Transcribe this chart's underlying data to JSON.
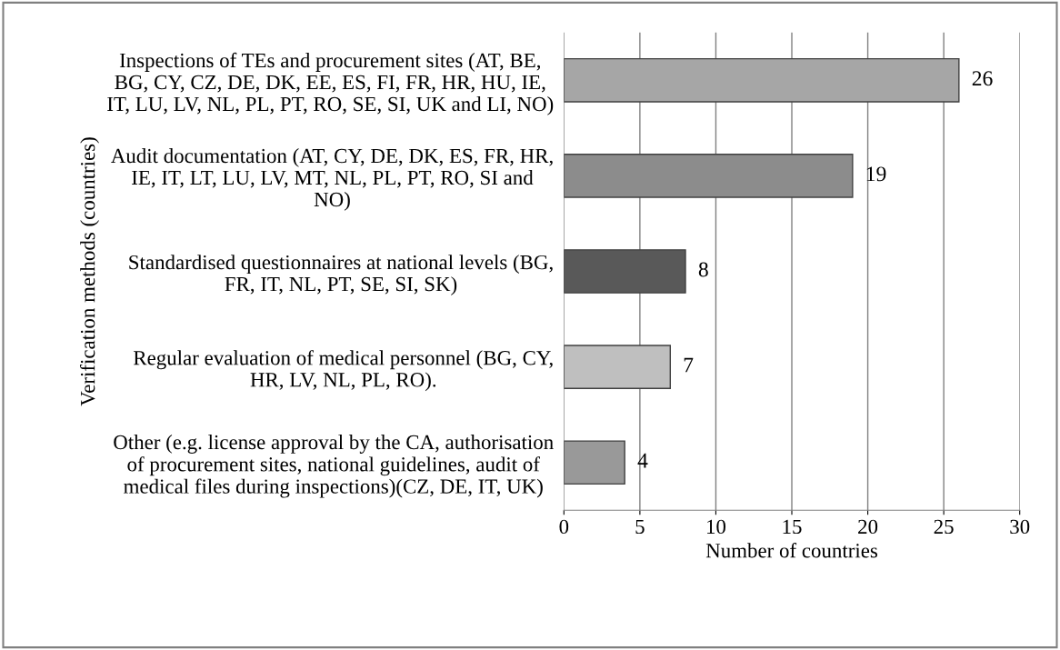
{
  "chart_data": {
    "type": "bar",
    "orientation": "horizontal",
    "categories": [
      "Inspections of TEs and procurement sites (AT, BE,\nBG, CY, CZ, DE, DK, EE, ES, FI, FR, HR, HU, IE,\nIT, LU, LV, NL, PL, PT, RO, SE, SI, UK and LI, NO)",
      "Audit documentation (AT, CY, DE, DK, ES, FR, HR,\nIE, IT, LT, LU, LV, MT, NL, PL, PT, RO, SI and\nNO)",
      "Standardised questionnaires at national levels (BG,\nFR, IT, NL, PT, SE, SI, SK)",
      "Regular evaluation of medical personnel (BG, CY,\nHR, LV, NL, PL, RO).",
      "Other (e.g. license approval by the CA, authorisation\nof procurement sites, national guidelines, audit of\nmedical files during inspections)(CZ, DE, IT, UK)"
    ],
    "values": [
      26,
      19,
      8,
      7,
      4
    ],
    "colors": [
      "#a6a6a6",
      "#8c8c8c",
      "#595959",
      "#bfbfbf",
      "#999999"
    ],
    "xlim": [
      0,
      30
    ],
    "xticks": [
      0,
      5,
      10,
      15,
      20,
      25,
      30
    ],
    "xlabel": "Number of countries",
    "ylabel": "Verification methods (countries)",
    "grid": "x",
    "data_labels": true,
    "legend": false
  }
}
